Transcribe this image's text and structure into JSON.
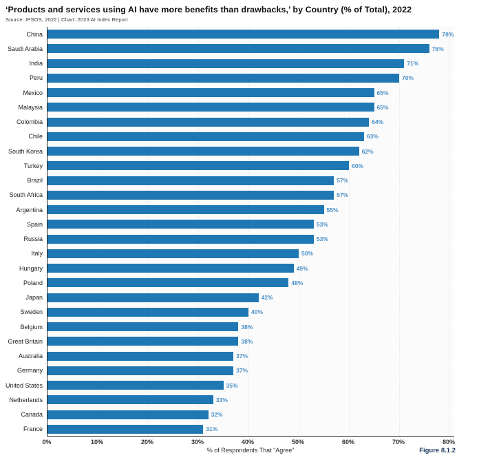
{
  "header": {
    "title": "‘Products and services using AI have more benefits than drawbacks,’ by Country (% of Total), 2022",
    "source": "Source: IPSOS, 2022 | Chart: 2023 AI Index Report"
  },
  "figure_label": "Figure 8.1.2",
  "chart_data": {
    "type": "bar",
    "orientation": "horizontal",
    "title": "‘Products and services using AI have more benefits than drawbacks,’ by Country (% of Total), 2022",
    "xlabel": "% of Respondents That “Agree”",
    "ylabel": "",
    "categories": [
      "China",
      "Saudi Arabia",
      "India",
      "Peru",
      "Mexico",
      "Malaysia",
      "Colombia",
      "Chile",
      "South Korea",
      "Turkey",
      "Brazil",
      "South Africa",
      "Argentina",
      "Spain",
      "Russia",
      "Italy",
      "Hungary",
      "Poland",
      "Japan",
      "Sweden",
      "Belgium",
      "Great Britain",
      "Australia",
      "Germany",
      "United States",
      "Netherlands",
      "Canada",
      "France"
    ],
    "values": [
      78,
      76,
      71,
      70,
      65,
      65,
      64,
      63,
      62,
      60,
      57,
      57,
      55,
      53,
      53,
      50,
      49,
      48,
      42,
      40,
      38,
      38,
      37,
      37,
      35,
      33,
      32,
      31
    ],
    "value_suffix": "%",
    "xlim": [
      0,
      80
    ],
    "xticks": [
      0,
      10,
      20,
      30,
      40,
      50,
      60,
      70,
      80
    ],
    "xtick_labels": [
      "0%",
      "10%",
      "20%",
      "30%",
      "40%",
      "50%",
      "60%",
      "70%",
      "80%"
    ],
    "grid": true,
    "legend": "none",
    "bar_color": "#1F78B4",
    "value_label_color": "#4A90C8"
  }
}
